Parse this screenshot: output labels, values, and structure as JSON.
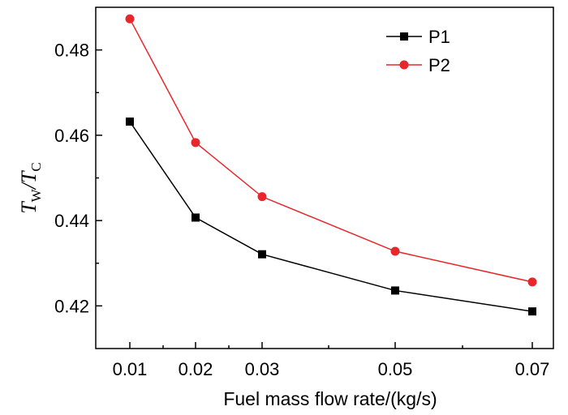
{
  "chart_data": {
    "type": "line",
    "categories": [
      "0.01",
      "0.02",
      "0.03",
      "0.05",
      "0.07"
    ],
    "xlabel": "Fuel mass flow rate/(kg/s)",
    "ylabel": {
      "t1": "T",
      "s1": "W",
      "slash": "/",
      "t2": "T",
      "s2": "C"
    },
    "ylim": [
      0.41,
      0.49
    ],
    "yticks": [
      "0.42",
      "0.44",
      "0.46",
      "0.48"
    ],
    "ytick_values": [
      0.42,
      0.44,
      0.46,
      0.48
    ],
    "legend_position": "top-right",
    "series": [
      {
        "name": "P1",
        "color": "#000000",
        "marker": "square",
        "values": [
          0.4632,
          0.4407,
          0.4321,
          0.4236,
          0.4187
        ]
      },
      {
        "name": "P2",
        "color": "#e8262b",
        "marker": "circle",
        "values": [
          0.4873,
          0.4583,
          0.4456,
          0.4328,
          0.4256
        ]
      }
    ]
  }
}
